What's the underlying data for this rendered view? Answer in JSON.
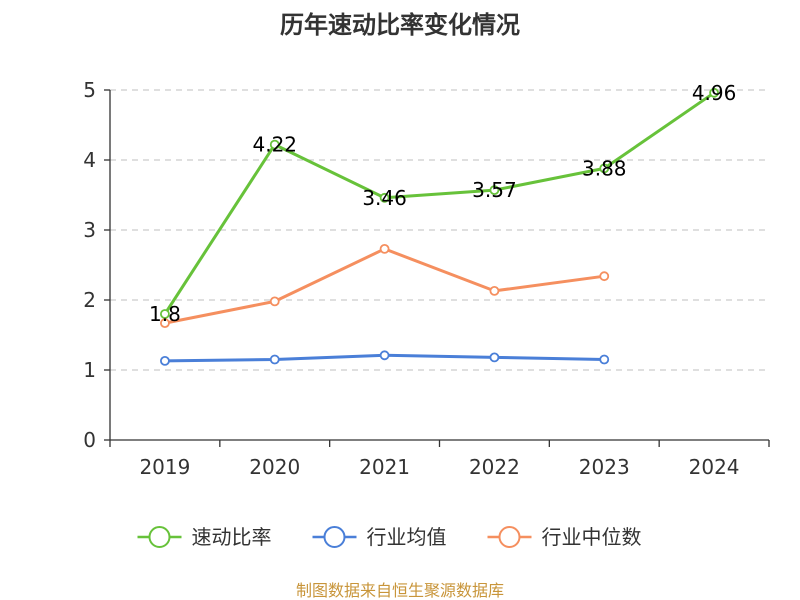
{
  "chart_data": {
    "type": "line",
    "title": "历年速动比率变化情况",
    "categories": [
      "2019",
      "2020",
      "2021",
      "2022",
      "2023",
      "2024"
    ],
    "ylim": [
      0,
      5
    ],
    "yticks": [
      "0",
      "1",
      "2",
      "3",
      "4",
      "5"
    ],
    "grid": true,
    "legend_position": "bottom",
    "series": [
      {
        "name": "速动比率",
        "color": "#67c23a",
        "values": [
          1.8,
          4.22,
          3.46,
          3.57,
          3.88,
          4.96
        ],
        "labels": [
          "1.8",
          "4.22",
          "3.46",
          "3.57",
          "3.88",
          "4.96"
        ]
      },
      {
        "name": "行业均值",
        "color": "#4a7fd8",
        "values": [
          1.13,
          1.15,
          1.21,
          1.18,
          1.15,
          null
        ]
      },
      {
        "name": "行业中位数",
        "color": "#f58f5f",
        "values": [
          1.67,
          1.98,
          2.73,
          2.13,
          2.34,
          null
        ]
      }
    ]
  },
  "source": "制图数据来自恒生聚源数据库",
  "source_color": "#c8953a"
}
